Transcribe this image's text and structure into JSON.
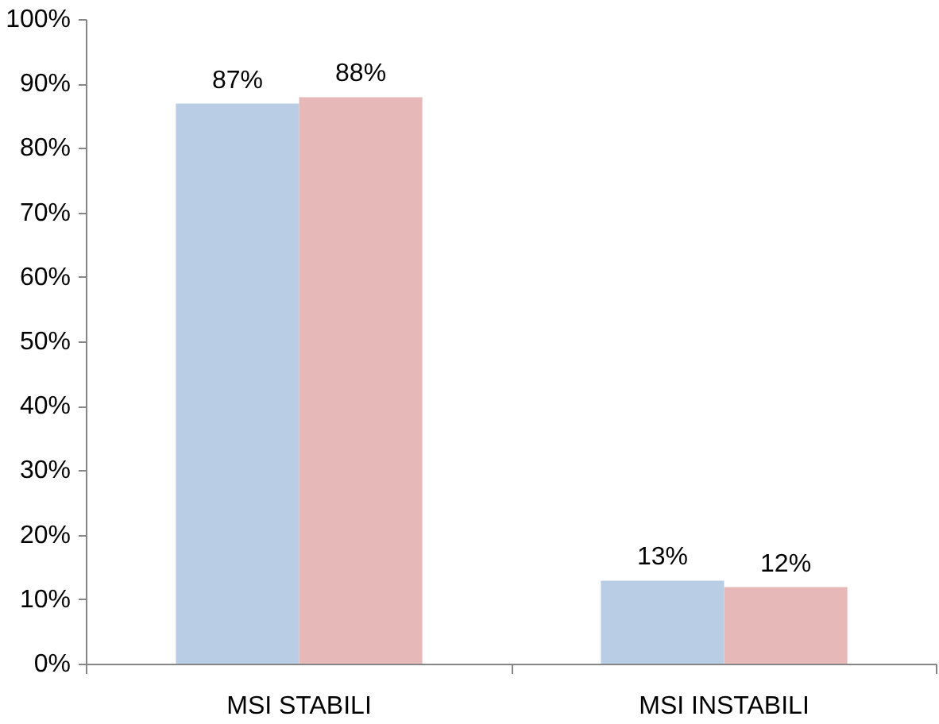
{
  "chart_data": {
    "type": "bar",
    "categories": [
      "MSI STABILI",
      "MSI INSTABILI"
    ],
    "series": [
      {
        "color": "#b9cde5",
        "values": [
          87,
          13
        ],
        "value_labels": [
          "87%",
          "13%"
        ]
      },
      {
        "color": "#e6b9b8",
        "values": [
          88,
          12
        ],
        "value_labels": [
          "88%",
          "12%"
        ]
      }
    ],
    "ylim": [
      0,
      100
    ],
    "yticks": [
      {
        "value": 0,
        "label": "0%"
      },
      {
        "value": 10,
        "label": "10%"
      },
      {
        "value": 20,
        "label": "20%"
      },
      {
        "value": 30,
        "label": "30%"
      },
      {
        "value": 40,
        "label": "40%"
      },
      {
        "value": 50,
        "label": "50%"
      },
      {
        "value": 60,
        "label": "60%"
      },
      {
        "value": 70,
        "label": "70%"
      },
      {
        "value": 80,
        "label": "80%"
      },
      {
        "value": 90,
        "label": "90%"
      },
      {
        "value": 100,
        "label": "100%"
      }
    ],
    "grid": false
  }
}
